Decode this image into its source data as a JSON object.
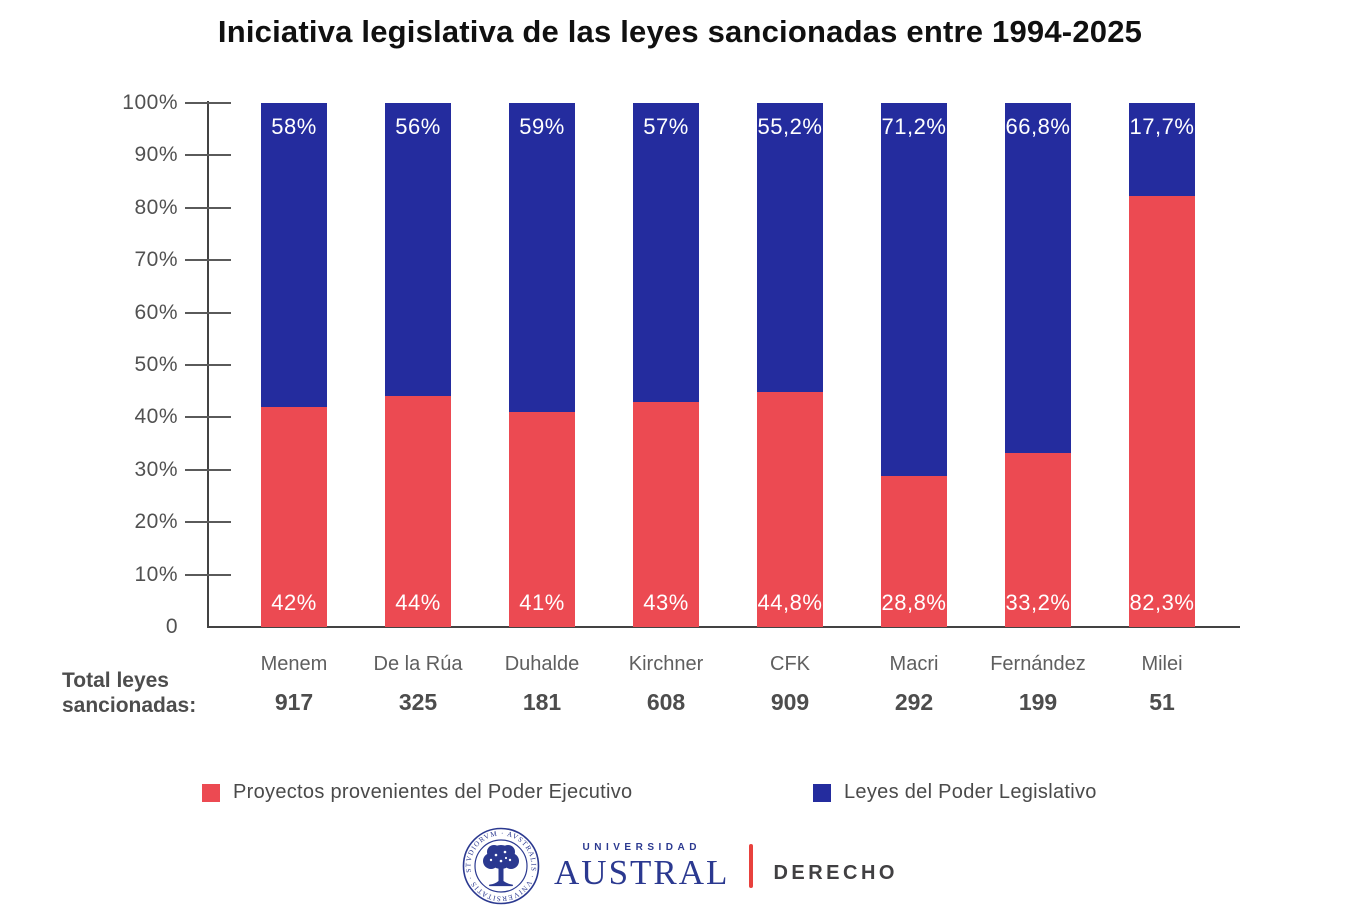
{
  "chart": {
    "title": "Iniciativa legislativa de las leyes sancionadas entre 1994-2025"
  },
  "chart_data": {
    "type": "bar",
    "stacked": true,
    "percent_stacked": true,
    "grid": false,
    "legend_position": "bottom",
    "categories": [
      "Menem",
      "De la Rúa",
      "Duhalde",
      "Kirchner",
      "CFK",
      "Macri",
      "Fernández",
      "Milei"
    ],
    "series": [
      {
        "name": "Proyectos provenientes del Poder Ejecutivo",
        "color": "#ec4a52",
        "values": [
          42,
          44,
          41,
          43,
          44.8,
          28.8,
          33.2,
          82.3
        ],
        "labels": [
          "42%",
          "44%",
          "41%",
          "43%",
          "44,8%",
          "28,8%",
          "33,2%",
          "82,3%"
        ]
      },
      {
        "name": "Leyes del Poder Legislativo",
        "color": "#242c9e",
        "values": [
          58,
          56,
          59,
          57,
          55.2,
          71.2,
          66.8,
          17.7
        ],
        "labels": [
          "58%",
          "56%",
          "59%",
          "57%",
          "55,2%",
          "71,2%",
          "66,8%",
          "17,7%"
        ]
      }
    ],
    "totals_caption": "Total leyes sancionadas:",
    "totals": [
      "917",
      "325",
      "181",
      "608",
      "909",
      "292",
      "199",
      "51"
    ],
    "y_axis": {
      "min": 0,
      "max": 100,
      "ticks": [
        "0",
        "10%",
        "20%",
        "30%",
        "40%",
        "50%",
        "60%",
        "70%",
        "80%",
        "90%",
        "100%"
      ]
    }
  },
  "footer": {
    "logo": {
      "universidad": "UNIVERSIDAD",
      "austral": "AUSTRAL",
      "department": "DERECHO",
      "seal_text": "· AVSTRALIS · VNIVERSITATIS · STVDIORVM ·"
    }
  },
  "colors": {
    "executive_red": "#ec4a52",
    "legislative_blue": "#242c9e",
    "logo_blue": "#2b3990",
    "divider_red": "#e8413d",
    "axis": "#434343"
  }
}
